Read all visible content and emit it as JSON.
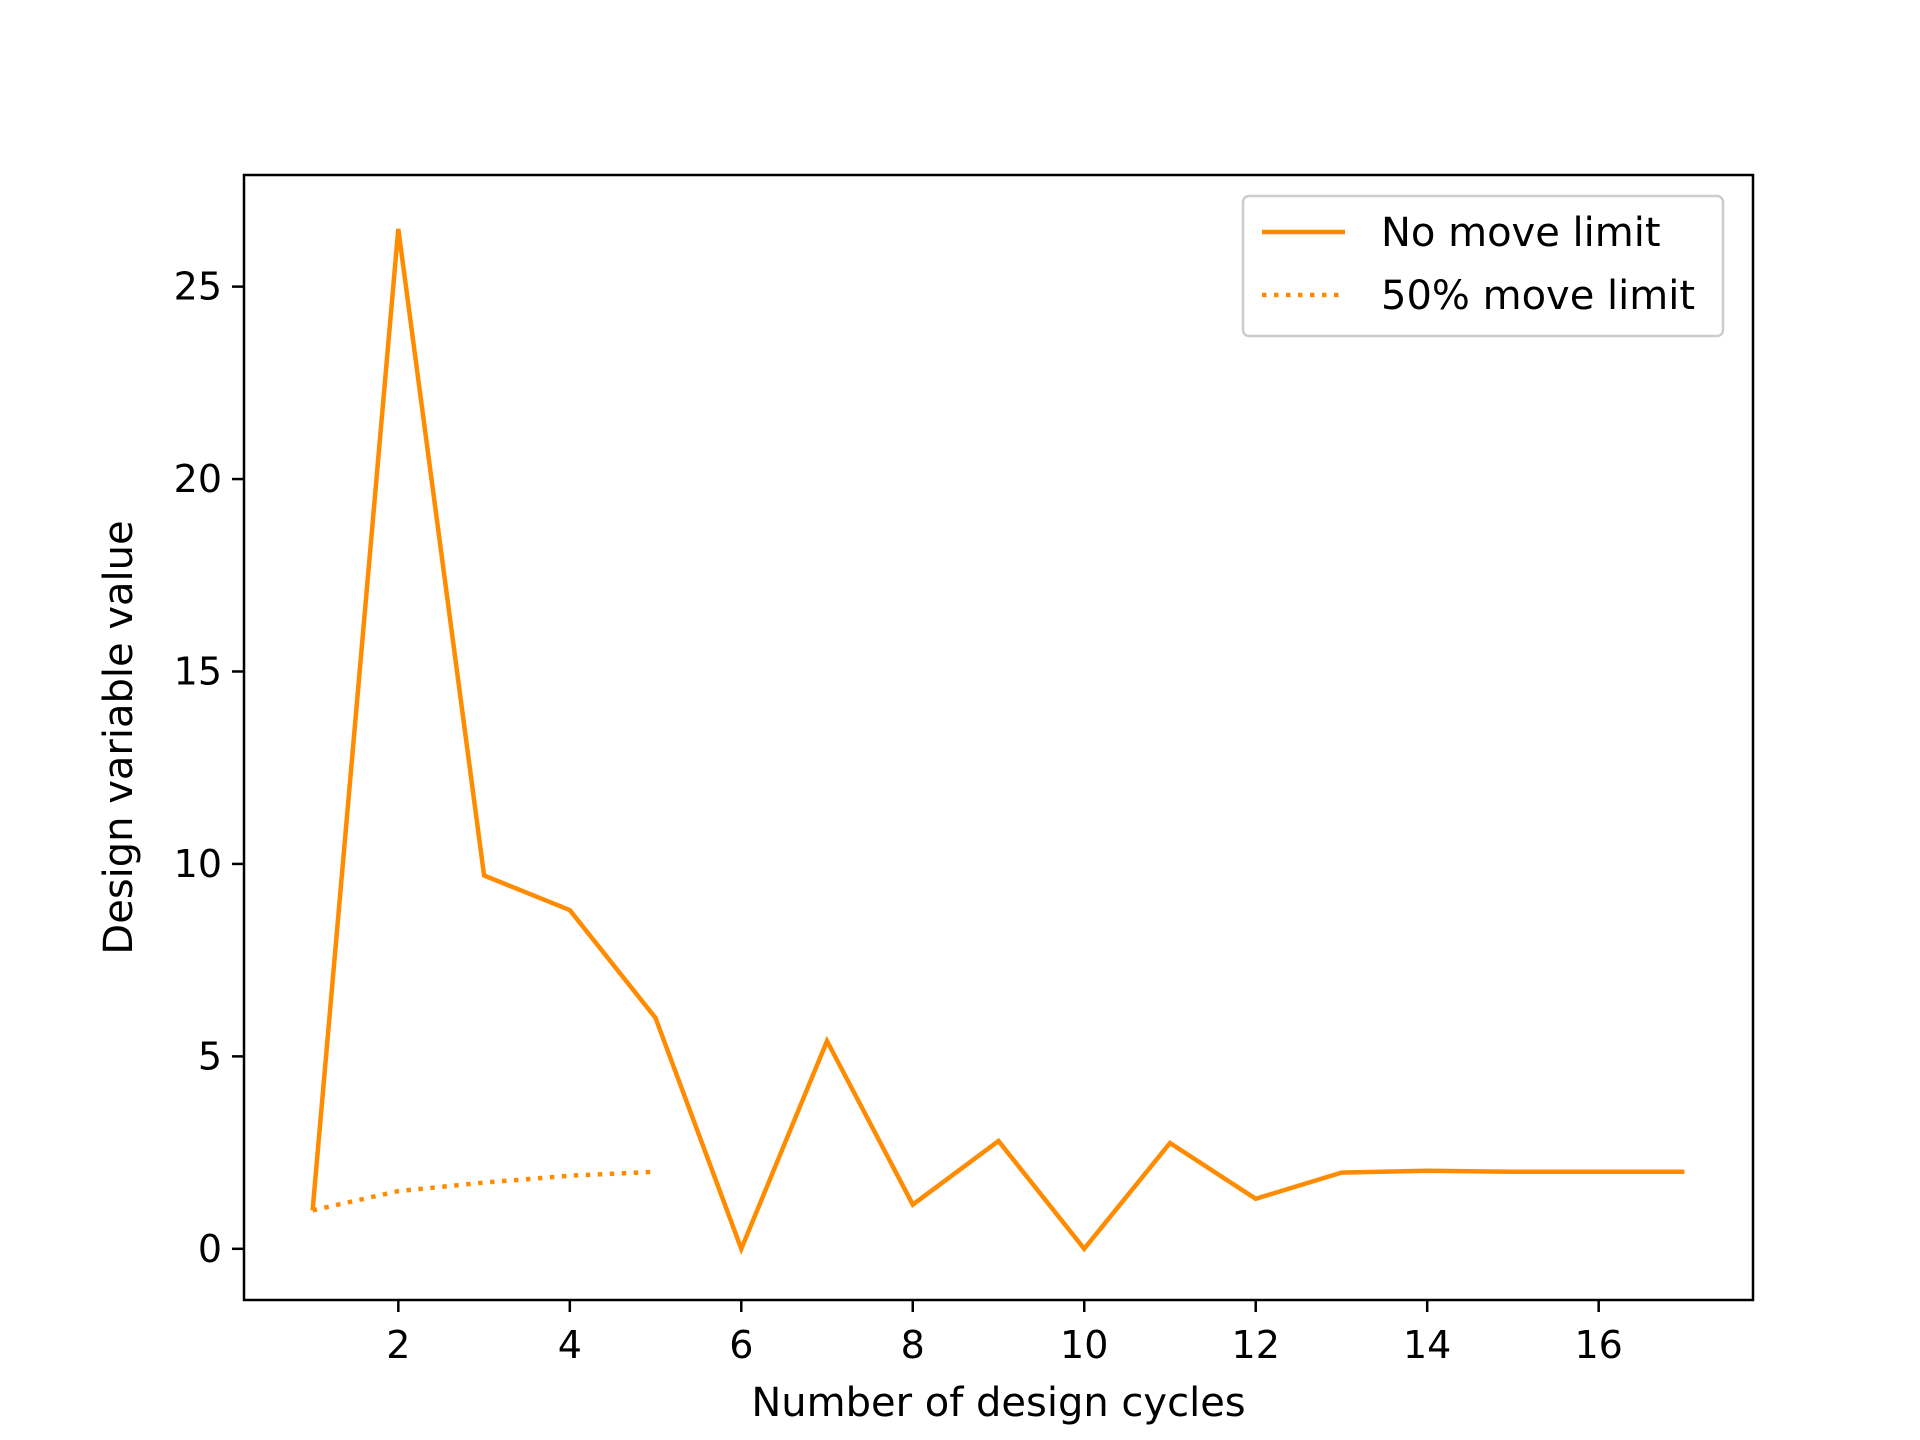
{
  "chart_data": {
    "type": "line",
    "title": "",
    "xlabel": "Number of design cycles",
    "ylabel": "Design variable value",
    "xlim": [
      0.2,
      17.8
    ],
    "ylim": [
      -1.33,
      27.9
    ],
    "xticks": [
      2,
      4,
      6,
      8,
      10,
      12,
      14,
      16
    ],
    "yticks": [
      0,
      5,
      10,
      15,
      20,
      25
    ],
    "grid": false,
    "legend_position": "top-right",
    "color": "#ff8c00",
    "series": [
      {
        "name": "No move limit",
        "style": "solid",
        "x": [
          1,
          2,
          3,
          4,
          5,
          6,
          7,
          8,
          9,
          10,
          11,
          12,
          13,
          14,
          15,
          16,
          17
        ],
        "y": [
          1.0,
          26.5,
          9.7,
          8.8,
          6.0,
          0.0,
          5.4,
          1.15,
          2.8,
          0.0,
          2.75,
          1.3,
          1.98,
          2.03,
          2.0,
          2.0,
          2.0
        ]
      },
      {
        "name": "50% move limit",
        "style": "dotted",
        "x": [
          1,
          2,
          3,
          4,
          5
        ],
        "y": [
          1.0,
          1.5,
          1.72,
          1.9,
          2.0
        ]
      }
    ]
  }
}
